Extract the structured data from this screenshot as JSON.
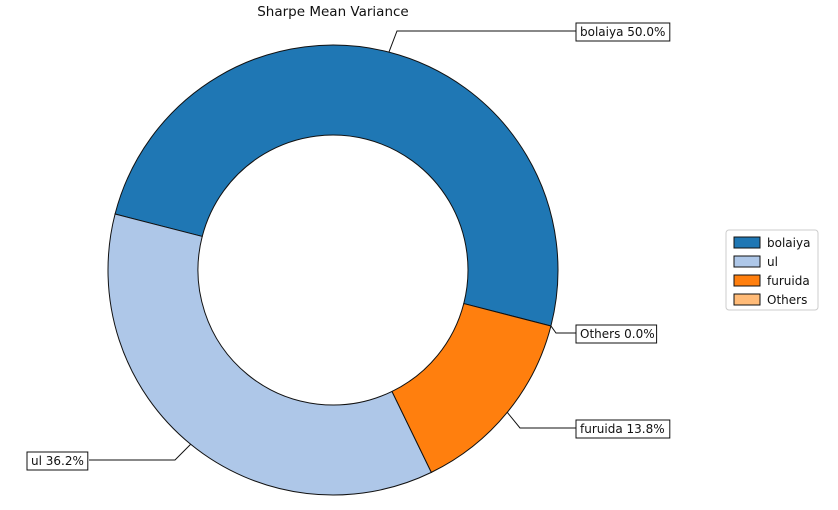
{
  "chart_data": {
    "type": "pie",
    "title": "Sharpe Mean Variance",
    "slices": [
      {
        "name": "bolaiya",
        "value": 50.0,
        "label": "bolaiya 50.0%",
        "color": "#1f77b4"
      },
      {
        "name": "ul",
        "value": 36.2,
        "label": "ul 36.2%",
        "color": "#aec7e8"
      },
      {
        "name": "furuida",
        "value": 13.8,
        "label": "furuida 13.8%",
        "color": "#ff7f0e"
      },
      {
        "name": "Others",
        "value": 0.0,
        "label": "Others 0.0%",
        "color": "#ffbb78"
      }
    ],
    "legend_entries": [
      "bolaiya",
      "ul",
      "furuida",
      "Others"
    ],
    "legend_position": "right"
  }
}
